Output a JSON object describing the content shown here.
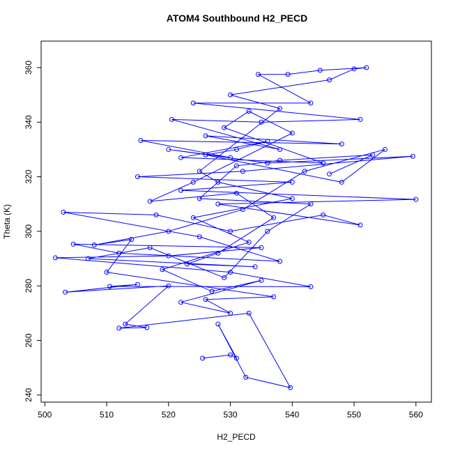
{
  "chart_data": {
    "type": "scatter",
    "lines": true,
    "title": "ATOM4 Southbound H2_PECD",
    "x_label": "H2_PECD",
    "y_label": "Theta (K)",
    "x": [
      525.5,
      530,
      531,
      528,
      532.5,
      539.7,
      533,
      512,
      516.5,
      513,
      520,
      503.3,
      515,
      510.5,
      543,
      530,
      501.7,
      520,
      535,
      504.6,
      512,
      538,
      525,
      503,
      518,
      530,
      545,
      551,
      528,
      560,
      522,
      540,
      515,
      532,
      559.5,
      536,
      520,
      530,
      515.5,
      548,
      526,
      538,
      520.5,
      535,
      551,
      524,
      543,
      534.5,
      539.3,
      544.5,
      552,
      550,
      546,
      530,
      538,
      525,
      528,
      540,
      524,
      533,
      519,
      527,
      535,
      522,
      530,
      526,
      537,
      510,
      514,
      508,
      520,
      532,
      542,
      555,
      548,
      526,
      531,
      536,
      522,
      545,
      529,
      533,
      540,
      524,
      517,
      531,
      537,
      528,
      523,
      534,
      507,
      517,
      529,
      536,
      543,
      525,
      531,
      538,
      553,
      546
    ],
    "series": [
      {
        "color": "#0000ff",
        "values": [
          253.5,
          254.7,
          253.5,
          266,
          246.5,
          242.7,
          270,
          264.5,
          264.7,
          266,
          280,
          277.7,
          280.5,
          279.8,
          279.7,
          285,
          290.3,
          291,
          294,
          295.3,
          292,
          289,
          298,
          307,
          306,
          300,
          306,
          302.3,
          310,
          311.7,
          315,
          318,
          320,
          322,
          327.5,
          325,
          330,
          327,
          333.3,
          332,
          335,
          330,
          341,
          340,
          341,
          347,
          347,
          357.5,
          357.5,
          359,
          360,
          359.5,
          355.5,
          350,
          345,
          322,
          318,
          312,
          305,
          296,
          286,
          278,
          282,
          274,
          270,
          275,
          276,
          285,
          297,
          295,
          300,
          308,
          322,
          330,
          318,
          328,
          330,
          333,
          327,
          325,
          338,
          344,
          336,
          318,
          311,
          314,
          305,
          292,
          288,
          287,
          290,
          294,
          283,
          300,
          310,
          312,
          324,
          326,
          328,
          321
        ]
      }
    ],
    "xlim": [
      499.4,
      562.5
    ],
    "ylim": [
      237.4,
      369.7
    ],
    "xticks": [
      500,
      510,
      520,
      530,
      540,
      550,
      560
    ],
    "yticks": [
      240,
      260,
      280,
      300,
      320,
      340,
      360
    ]
  }
}
